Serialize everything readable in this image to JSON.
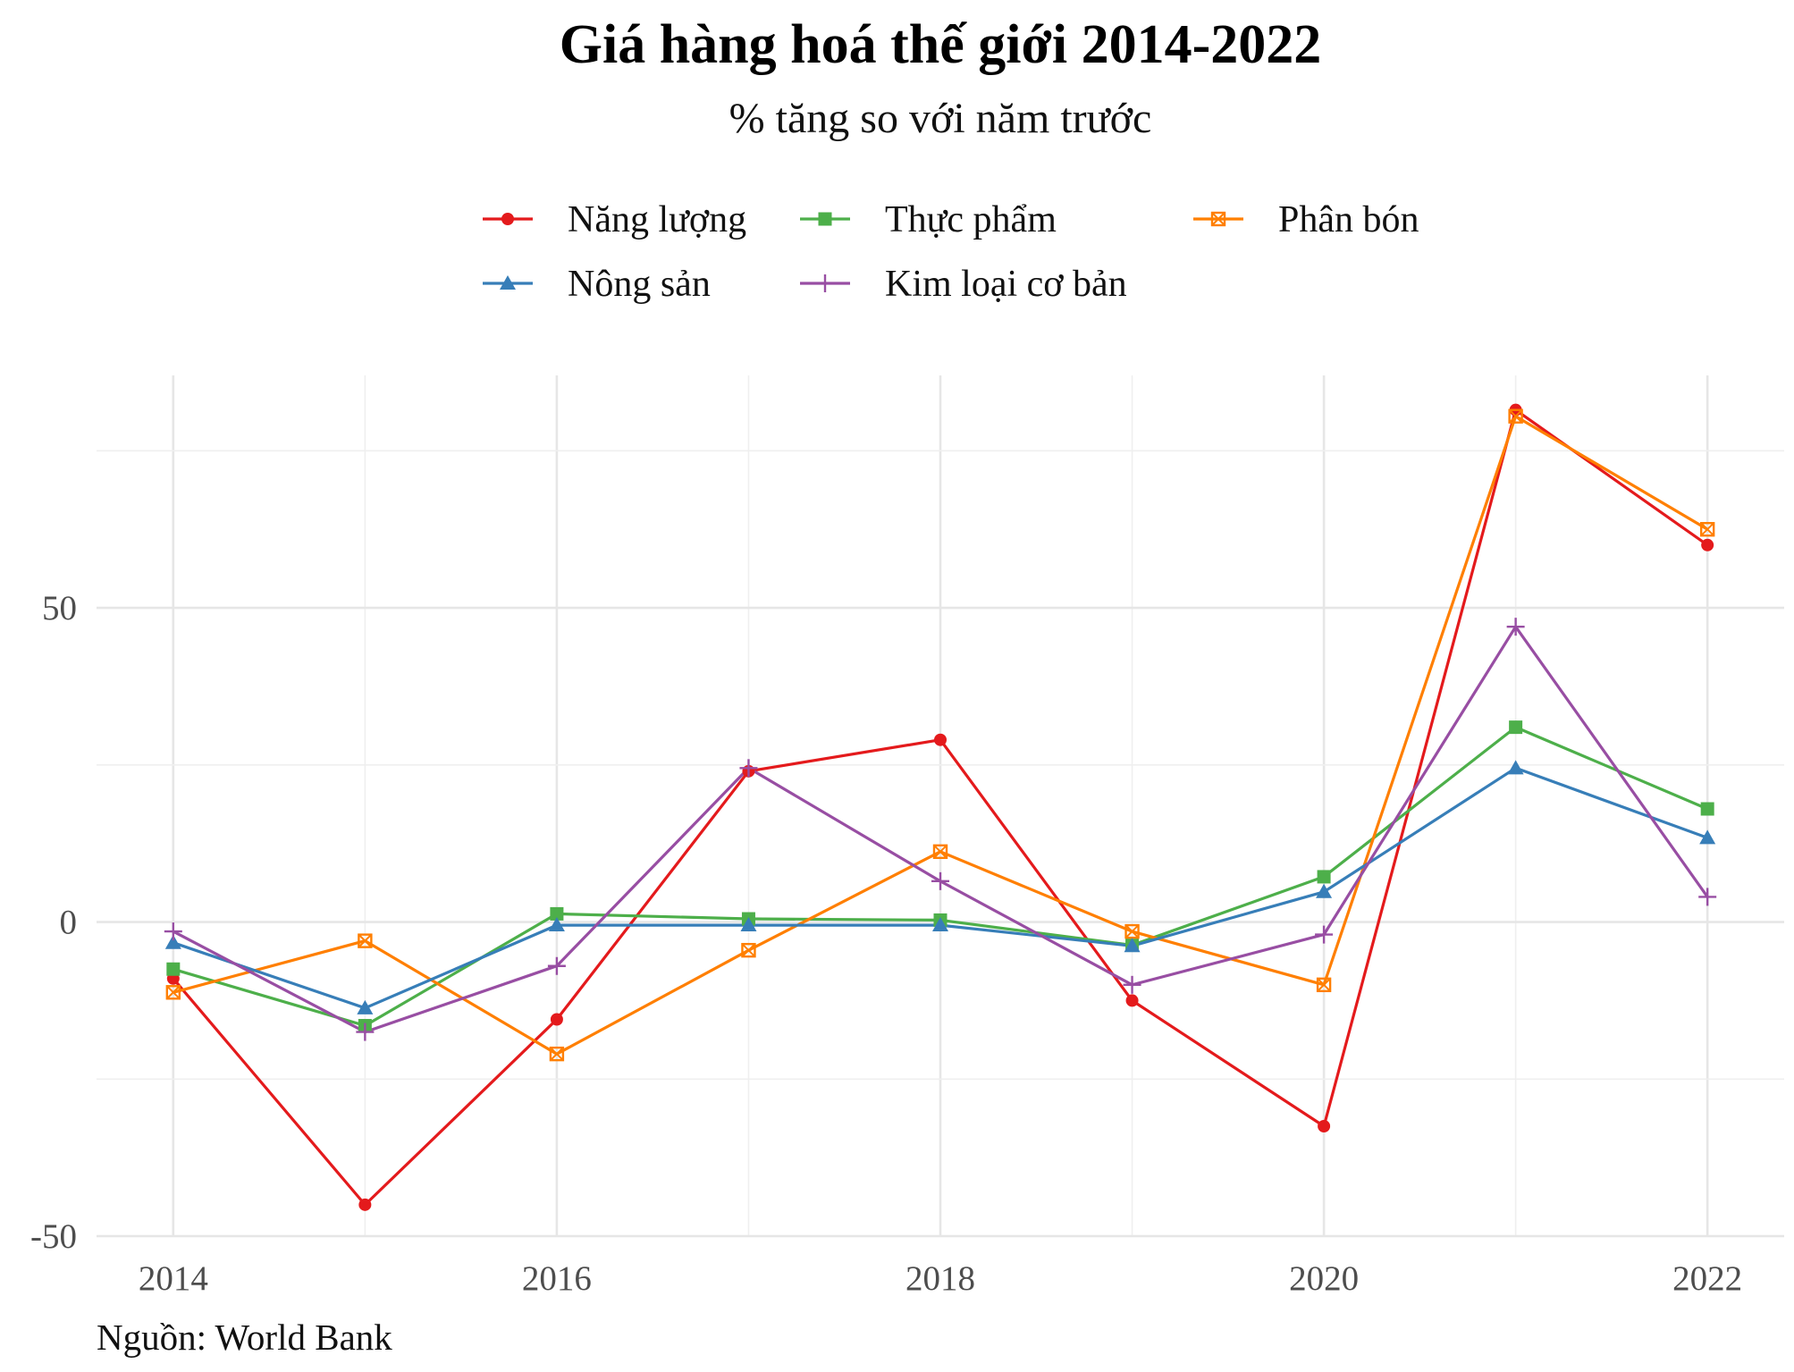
{
  "title": "Giá hàng hoá thế giới 2014-2022",
  "subtitle": "% tăng so với năm trước",
  "caption": "Nguồn: World Bank",
  "chart_data": {
    "type": "line",
    "x": [
      2014,
      2015,
      2016,
      2017,
      2018,
      2019,
      2020,
      2021,
      2022
    ],
    "x_ticks": [
      2014,
      2016,
      2018,
      2020,
      2022
    ],
    "y_ticks": [
      -50,
      0,
      50
    ],
    "xlim": [
      2013.6,
      2022.4
    ],
    "ylim": [
      -50,
      87
    ],
    "grid": true,
    "legend_position": "top",
    "series": [
      {
        "name": "Năng lượng",
        "color": "#e41a1c",
        "marker": "circle",
        "values": [
          -9,
          -45,
          -15.5,
          24,
          29,
          -12.5,
          -32.5,
          81.5,
          60
        ]
      },
      {
        "name": "Thực phẩm",
        "color": "#4daf4a",
        "marker": "square",
        "values": [
          -7.5,
          -16.5,
          1.3,
          0.5,
          0.3,
          -3.7,
          7.2,
          31,
          18
        ]
      },
      {
        "name": "Phân bón",
        "color": "#ff7f00",
        "marker": "square-x",
        "values": [
          -11.2,
          -3,
          -21,
          -4.5,
          11.2,
          -1.5,
          -10,
          80.5,
          62.5
        ]
      },
      {
        "name": "Nông sản",
        "color": "#377eb8",
        "marker": "triangle",
        "values": [
          -3.3,
          -13.7,
          -0.5,
          -0.5,
          -0.5,
          -3.8,
          4.8,
          24.5,
          13.4
        ]
      },
      {
        "name": "Kim loại cơ bản",
        "color": "#984ea3",
        "marker": "plus",
        "values": [
          -1.5,
          -17.5,
          -7,
          24.5,
          6.5,
          -10,
          -2,
          47,
          4
        ]
      }
    ]
  }
}
